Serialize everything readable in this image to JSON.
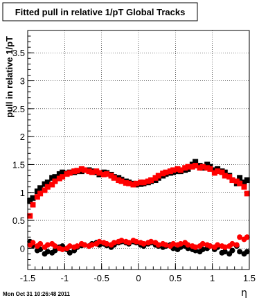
{
  "chart_data": {
    "type": "scatter",
    "title": "Fitted pull in relative 1/pT  Global Tracks",
    "xlabel": "η",
    "ylabel": "pull in relative 1/pT",
    "footer": "Mon Oct 31 10:26:48 2011",
    "xlim": [
      -1.5,
      1.5
    ],
    "ylim": [
      -0.38,
      3.9
    ],
    "xticks": [
      -1.5,
      -1,
      -0.5,
      0,
      0.5,
      1,
      1.5
    ],
    "xtick_labels": [
      "-1.5",
      "-1",
      "-0.5",
      "0",
      "0.5",
      "1",
      "1.5"
    ],
    "yticks": [
      0,
      0.5,
      1,
      1.5,
      2,
      2.5,
      3,
      3.5
    ],
    "ytick_labels": [
      "0",
      "0.5",
      "1",
      "1.5",
      "2",
      "2.5",
      "3",
      "3.5"
    ],
    "grid": true,
    "colors": {
      "black_series": "#000000",
      "red_series": "#ff0000"
    },
    "series": [
      {
        "marker": "square",
        "color": "#000000",
        "x": [
          -1.47,
          -1.43,
          -1.37,
          -1.33,
          -1.27,
          -1.23,
          -1.17,
          -1.13,
          -1.07,
          -1.03,
          -0.97,
          -0.93,
          -0.87,
          -0.83,
          -0.77,
          -0.73,
          -0.67,
          -0.63,
          -0.57,
          -0.53,
          -0.47,
          -0.43,
          -0.37,
          -0.33,
          -0.27,
          -0.23,
          -0.17,
          -0.13,
          -0.07,
          -0.03,
          0.03,
          0.07,
          0.13,
          0.17,
          0.23,
          0.27,
          0.33,
          0.37,
          0.43,
          0.47,
          0.53,
          0.57,
          0.63,
          0.67,
          0.73,
          0.77,
          0.83,
          0.87,
          0.93,
          0.97,
          1.03,
          1.07,
          1.13,
          1.17,
          1.23,
          1.27,
          1.33,
          1.37,
          1.43,
          1.47
        ],
        "y": [
          0.85,
          0.9,
          1.02,
          1.08,
          1.15,
          1.18,
          1.26,
          1.28,
          1.33,
          1.36,
          1.34,
          1.36,
          1.36,
          1.38,
          1.38,
          1.4,
          1.4,
          1.38,
          1.36,
          1.32,
          1.36,
          1.35,
          1.32,
          1.28,
          1.26,
          1.23,
          1.2,
          1.18,
          1.16,
          1.14,
          1.15,
          1.16,
          1.18,
          1.2,
          1.22,
          1.26,
          1.3,
          1.33,
          1.35,
          1.36,
          1.38,
          1.38,
          1.4,
          1.42,
          1.5,
          1.55,
          1.48,
          1.44,
          1.5,
          1.46,
          1.4,
          1.42,
          1.38,
          1.36,
          1.3,
          1.22,
          1.16,
          1.26,
          1.18,
          1.22
        ]
      },
      {
        "marker": "square",
        "color": "#ff0000",
        "x": [
          -1.47,
          -1.43,
          -1.37,
          -1.33,
          -1.27,
          -1.23,
          -1.17,
          -1.13,
          -1.07,
          -1.03,
          -0.97,
          -0.93,
          -0.87,
          -0.83,
          -0.77,
          -0.73,
          -0.67,
          -0.63,
          -0.57,
          -0.53,
          -0.47,
          -0.43,
          -0.37,
          -0.33,
          -0.27,
          -0.23,
          -0.17,
          -0.13,
          -0.07,
          -0.03,
          0.03,
          0.07,
          0.13,
          0.17,
          0.23,
          0.27,
          0.33,
          0.37,
          0.43,
          0.47,
          0.53,
          0.57,
          0.63,
          0.67,
          0.73,
          0.77,
          0.83,
          0.87,
          0.93,
          0.97,
          1.03,
          1.07,
          1.13,
          1.17,
          1.23,
          1.27,
          1.33,
          1.37,
          1.43,
          1.47
        ],
        "y": [
          0.58,
          0.78,
          0.92,
          0.98,
          1.04,
          1.1,
          1.14,
          1.2,
          1.25,
          1.28,
          1.33,
          1.35,
          1.38,
          1.39,
          1.42,
          1.4,
          1.38,
          1.36,
          1.38,
          1.35,
          1.32,
          1.33,
          1.3,
          1.26,
          1.22,
          1.2,
          1.17,
          1.16,
          1.14,
          1.16,
          1.18,
          1.18,
          1.2,
          1.22,
          1.26,
          1.3,
          1.34,
          1.36,
          1.38,
          1.4,
          1.42,
          1.4,
          1.44,
          1.46,
          1.46,
          1.48,
          1.44,
          1.46,
          1.44,
          1.42,
          1.35,
          1.38,
          1.36,
          1.3,
          1.28,
          1.22,
          1.2,
          1.16,
          1.1,
          0.98
        ]
      },
      {
        "marker": "circle",
        "color": "#000000",
        "x": [
          -1.47,
          -1.43,
          -1.37,
          -1.33,
          -1.27,
          -1.23,
          -1.17,
          -1.13,
          -1.07,
          -1.03,
          -0.97,
          -0.93,
          -0.87,
          -0.83,
          -0.77,
          -0.73,
          -0.67,
          -0.63,
          -0.57,
          -0.53,
          -0.47,
          -0.43,
          -0.37,
          -0.33,
          -0.27,
          -0.23,
          -0.17,
          -0.13,
          -0.07,
          -0.03,
          0.03,
          0.07,
          0.13,
          0.17,
          0.23,
          0.27,
          0.33,
          0.37,
          0.43,
          0.47,
          0.53,
          0.57,
          0.63,
          0.67,
          0.73,
          0.77,
          0.83,
          0.87,
          0.93,
          0.97,
          1.03,
          1.07,
          1.13,
          1.17,
          1.23,
          1.27,
          1.33,
          1.37,
          1.43,
          1.47
        ],
        "y": [
          0.12,
          0.05,
          -0.04,
          -0.02,
          -0.1,
          -0.06,
          -0.08,
          -0.04,
          0.02,
          0.04,
          -0.02,
          -0.08,
          -0.04,
          0.02,
          0.05,
          0.06,
          0.04,
          0.08,
          0.1,
          0.06,
          0.08,
          0.05,
          0.02,
          0.06,
          0.1,
          0.12,
          0.1,
          0.08,
          0.12,
          0.1,
          0.06,
          0.04,
          0.08,
          0.1,
          0.06,
          0.04,
          0.02,
          0.04,
          0.06,
          0.0,
          -0.02,
          0.02,
          0.04,
          0.0,
          -0.02,
          -0.04,
          -0.06,
          -0.02,
          0.0,
          0.04,
          -0.02,
          0.02,
          -0.08,
          -0.06,
          -0.1,
          -0.04,
          0.04,
          -0.06,
          -0.1,
          -0.06
        ]
      },
      {
        "marker": "circle",
        "color": "#ff0000",
        "x": [
          -1.47,
          -1.43,
          -1.37,
          -1.33,
          -1.27,
          -1.23,
          -1.17,
          -1.13,
          -1.07,
          -1.03,
          -0.97,
          -0.93,
          -0.87,
          -0.83,
          -0.77,
          -0.73,
          -0.67,
          -0.63,
          -0.57,
          -0.53,
          -0.47,
          -0.43,
          -0.37,
          -0.33,
          -0.27,
          -0.23,
          -0.17,
          -0.13,
          -0.07,
          -0.03,
          0.03,
          0.07,
          0.13,
          0.17,
          0.23,
          0.27,
          0.33,
          0.37,
          0.43,
          0.47,
          0.53,
          0.57,
          0.63,
          0.67,
          0.73,
          0.77,
          0.83,
          0.87,
          0.93,
          0.97,
          1.03,
          1.07,
          1.13,
          1.17,
          1.23,
          1.27,
          1.33,
          1.37,
          1.43,
          1.47
        ],
        "y": [
          0.06,
          0.1,
          0.04,
          0.08,
          0.02,
          0.06,
          0.08,
          0.04,
          0.0,
          -0.02,
          0.0,
          0.04,
          0.02,
          0.04,
          0.08,
          0.06,
          0.04,
          0.06,
          0.08,
          0.12,
          0.1,
          0.08,
          0.06,
          0.1,
          0.12,
          0.14,
          0.12,
          0.1,
          0.14,
          0.12,
          0.1,
          0.08,
          0.1,
          0.12,
          0.1,
          0.06,
          0.08,
          0.06,
          0.04,
          0.08,
          0.06,
          0.08,
          0.1,
          0.06,
          0.04,
          0.02,
          0.04,
          0.08,
          0.06,
          0.04,
          0.02,
          0.06,
          0.04,
          0.02,
          0.04,
          0.08,
          0.06,
          0.2,
          0.16,
          0.2
        ]
      }
    ]
  }
}
